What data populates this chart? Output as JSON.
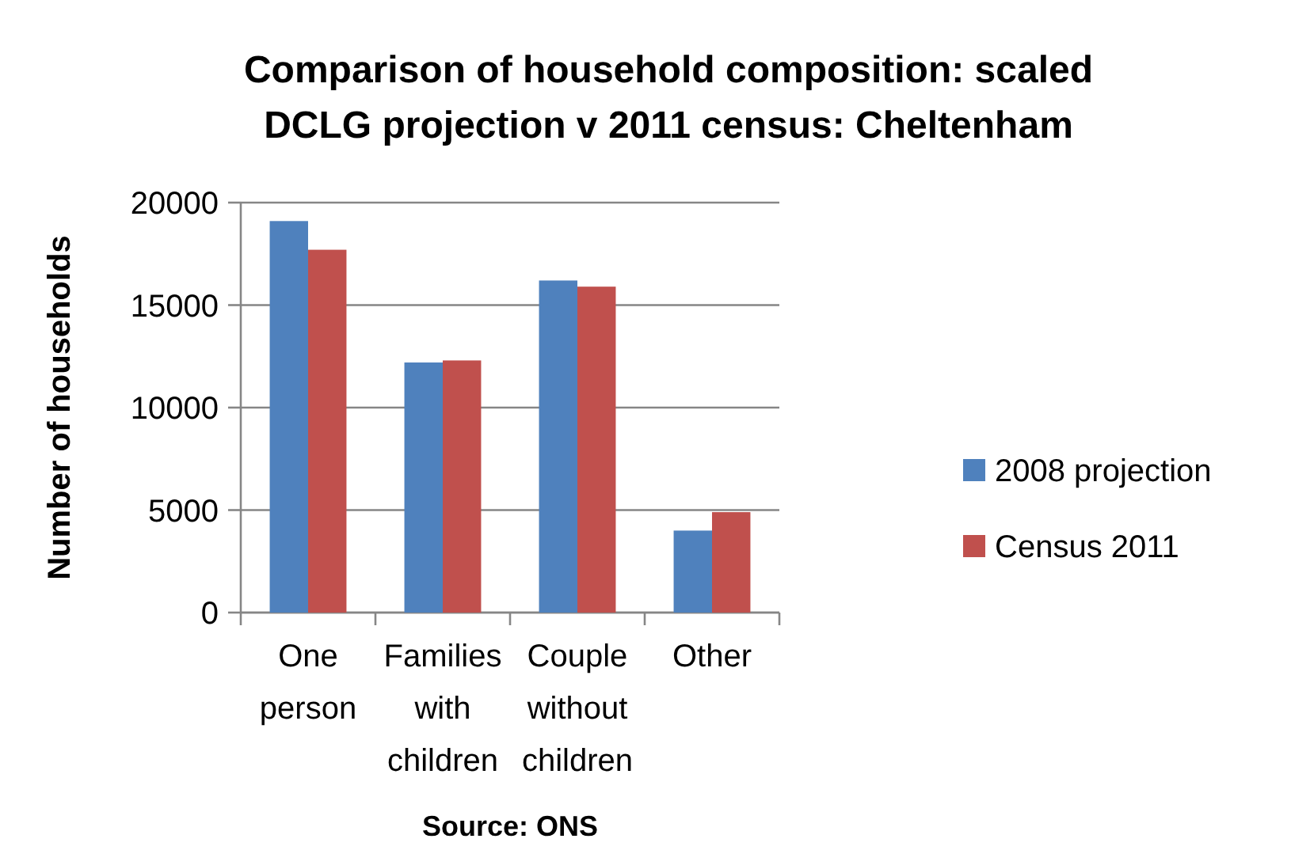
{
  "chart_data": {
    "type": "bar",
    "title": "Comparison of household composition: scaled DCLG projection v 2011 census: Cheltenham",
    "ylabel": "Number of households",
    "annotations": [
      "Source: ONS"
    ],
    "categories": [
      "One person",
      "Families with children",
      "Couple without children",
      "Other"
    ],
    "series": [
      {
        "name": "2008 projection",
        "color": "#4f81bd",
        "values": [
          19100,
          12200,
          16200,
          4000
        ]
      },
      {
        "name": "Census 2011",
        "color": "#c0504d",
        "values": [
          17700,
          12300,
          15900,
          4900
        ]
      }
    ],
    "ylim": [
      0,
      20000
    ],
    "yticks": [
      0,
      5000,
      10000,
      15000,
      20000
    ],
    "grid": "y",
    "legend": "right"
  }
}
